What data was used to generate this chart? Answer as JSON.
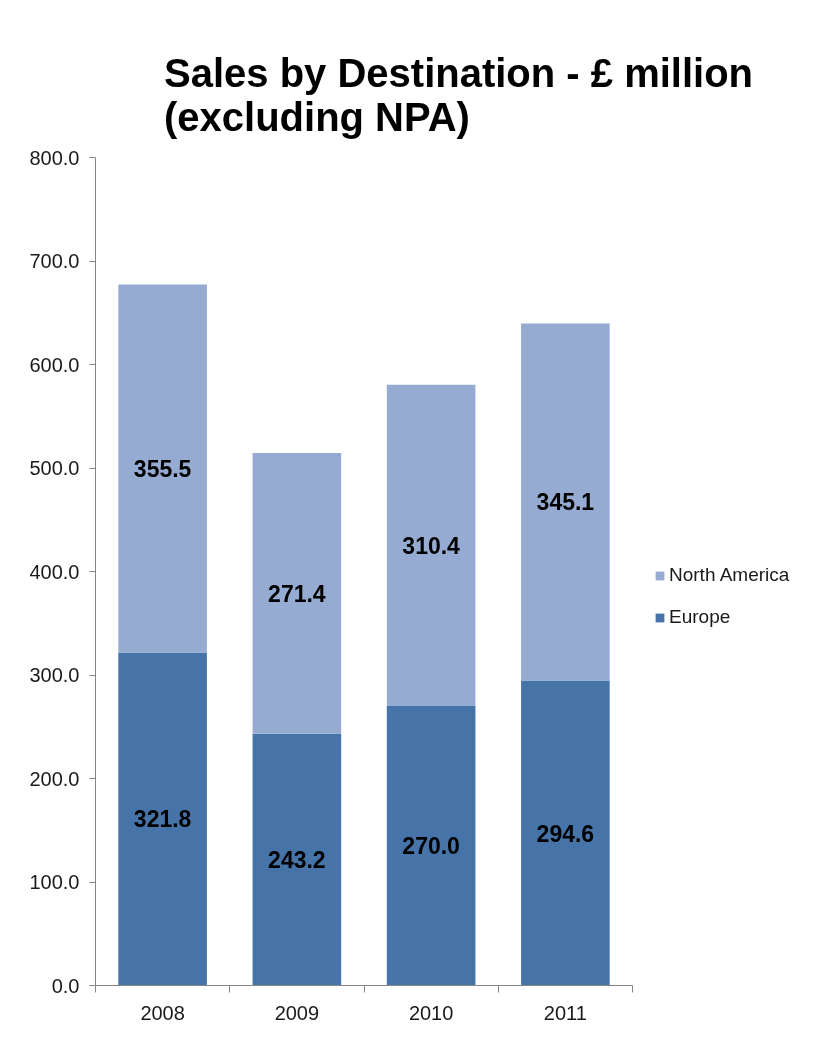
{
  "chart_data": {
    "type": "bar",
    "title": "Sales by Destination - £ million\n(excluding NPA)",
    "categories": [
      "2008",
      "2009",
      "2010",
      "2011"
    ],
    "stacked": true,
    "series": [
      {
        "name": "Europe",
        "color": "#4674a8",
        "values": [
          321.8,
          243.2,
          270.0,
          294.6
        ],
        "value_labels": [
          "321.8",
          "243.2",
          "270.0",
          "294.6"
        ]
      },
      {
        "name": "North America",
        "color": "#95abd1",
        "values": [
          355.5,
          271.4,
          310.4,
          345.1
        ],
        "value_labels": [
          "355.5",
          "271.4",
          "310.4",
          "345.1"
        ]
      }
    ],
    "ylim": [
      0,
      800
    ],
    "yticks": [
      {
        "value": 0,
        "label": "0.0"
      },
      {
        "value": 100,
        "label": "100.0"
      },
      {
        "value": 200,
        "label": "200.0"
      },
      {
        "value": 300,
        "label": "300.0"
      },
      {
        "value": 400,
        "label": "400.0"
      },
      {
        "value": 500,
        "label": "500.0"
      },
      {
        "value": 600,
        "label": "600.0"
      },
      {
        "value": 700,
        "label": "700.0"
      },
      {
        "value": 800,
        "label": "800.0"
      }
    ],
    "grid": false,
    "legend": "right"
  }
}
